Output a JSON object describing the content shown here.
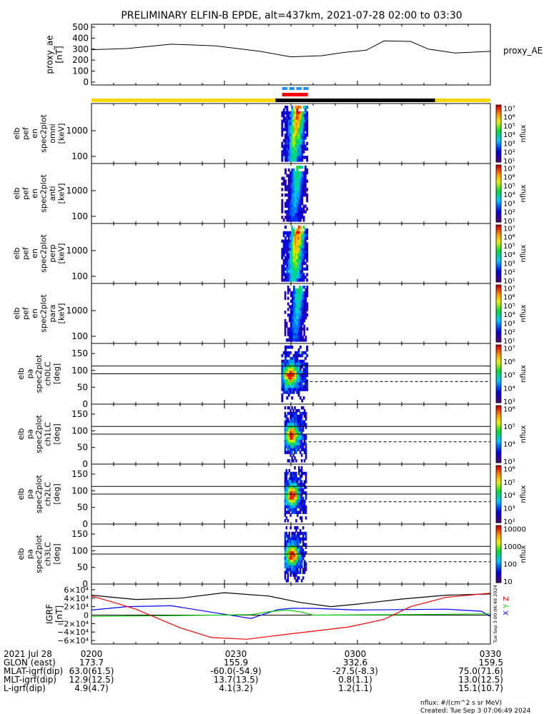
{
  "title": "PRELIMINARY ELFIN-B EPDE, alt=437km, 2021-07-28 02:00 to 03:30",
  "colors": {
    "bar_yellow": "#ffd700",
    "bar_black": "#000000",
    "flag_blue": "#1e90ff",
    "flag_red": "#ff0000",
    "bx": "#0000ff",
    "by": "#00cc00",
    "bz": "#ff0000",
    "btot": "#000000"
  },
  "chart_data": [
    {
      "type": "line",
      "panel": "proxy_ae",
      "ylabel": [
        "proxy_ae",
        "[nT]"
      ],
      "right_label": "proxy_AE",
      "ylim": [
        0,
        500
      ],
      "yticks": [
        0,
        100,
        200,
        300,
        400,
        500
      ],
      "x_minutes": [
        0,
        8,
        18,
        28,
        38,
        45,
        52,
        57,
        62,
        66,
        72,
        76,
        82,
        90
      ],
      "values": [
        295,
        305,
        345,
        330,
        280,
        230,
        240,
        270,
        290,
        375,
        370,
        300,
        265,
        280
      ]
    },
    {
      "type": "bar",
      "panel": "status",
      "segments": [
        {
          "start": 0,
          "end": 41.5,
          "color": "yellow"
        },
        {
          "start": 41.5,
          "end": 77.5,
          "color": "black"
        },
        {
          "start": 77.5,
          "end": 90,
          "color": "yellow"
        }
      ],
      "blue_flags": [
        [
          43,
          44.2
        ],
        [
          44.6,
          45.8
        ],
        [
          46.2,
          47.4
        ],
        [
          47.8,
          49
        ]
      ],
      "red_flag": [
        43,
        48.8
      ]
    },
    {
      "type": "heatmap",
      "panel": "omni",
      "ylabel": [
        "elb",
        "pef",
        "en",
        "spec2plot",
        "omni",
        "[keV]"
      ],
      "scale": "log",
      "yticks": [
        "100",
        "1000"
      ],
      "x_range_minutes": [
        42.8,
        48.8
      ],
      "colorbar": {
        "label": "nflux",
        "ticks": [
          "10¹",
          "10²",
          "10³",
          "10⁴",
          "10⁵",
          "10⁶",
          "10⁷"
        ]
      }
    },
    {
      "type": "heatmap",
      "panel": "anti",
      "ylabel": [
        "elb",
        "pef",
        "en",
        "spec2plot",
        "anti",
        "[keV]"
      ],
      "scale": "log",
      "yticks": [
        "100",
        "1000"
      ],
      "x_range_minutes": [
        42.8,
        48.8
      ],
      "colorbar": {
        "label": "nflux",
        "ticks": [
          "10¹",
          "10²",
          "10³",
          "10⁴",
          "10⁵",
          "10⁶",
          "10⁷"
        ]
      }
    },
    {
      "type": "heatmap",
      "panel": "perp",
      "ylabel": [
        "elb",
        "pef",
        "en",
        "spec2plot",
        "perp",
        "[keV]"
      ],
      "scale": "log",
      "yticks": [
        "100",
        "1000"
      ],
      "x_range_minutes": [
        42.8,
        48.8
      ],
      "colorbar": {
        "label": "nflux",
        "ticks": [
          "10¹",
          "10²",
          "10³",
          "10⁴",
          "10⁵",
          "10⁶",
          "10⁷"
        ]
      }
    },
    {
      "type": "heatmap",
      "panel": "para",
      "ylabel": [
        "elb",
        "pef",
        "en",
        "spec2plot",
        "para",
        "[keV]"
      ],
      "scale": "log",
      "yticks": [
        "100",
        "1000"
      ],
      "x_range_minutes": [
        43.5,
        48.8
      ],
      "colorbar": {
        "label": "nflux",
        "ticks": [
          "10¹",
          "10²",
          "10³",
          "10⁴",
          "10⁵",
          "10⁶",
          "10⁷"
        ]
      }
    },
    {
      "type": "heatmap",
      "panel": "ch0LC",
      "ylabel": [
        "elb",
        "pa",
        "spec2plot",
        "ch0LC",
        "[deg]"
      ],
      "ylim": [
        0,
        180
      ],
      "yticks": [
        0,
        50,
        100,
        150
      ],
      "loss_cone_solid": [
        90,
        113
      ],
      "loss_cone_dashed": 67,
      "x_range_minutes": [
        42.8,
        48.8
      ],
      "colorbar": {
        "label": "nflux",
        "ticks": [
          "10³",
          "10⁴",
          "10⁵",
          "10⁶",
          "10⁷"
        ]
      }
    },
    {
      "type": "heatmap",
      "panel": "ch1LC",
      "ylabel": [
        "elb",
        "pa",
        "spec2plot",
        "ch1LC",
        "[deg]"
      ],
      "ylim": [
        0,
        180
      ],
      "yticks": [
        0,
        50,
        100,
        150
      ],
      "loss_cone_solid": [
        90,
        113
      ],
      "loss_cone_dashed": 67,
      "x_range_minutes": [
        43.5,
        48.5
      ],
      "colorbar": {
        "label": "nflux",
        "ticks": [
          "10³",
          "10⁴",
          "10⁵",
          "10⁶"
        ]
      }
    },
    {
      "type": "heatmap",
      "panel": "ch2LC",
      "ylabel": [
        "elb",
        "pa",
        "spec2plot",
        "ch2LC",
        "[deg]"
      ],
      "ylim": [
        0,
        180
      ],
      "yticks": [
        0,
        50,
        100,
        150
      ],
      "loss_cone_solid": [
        90,
        113
      ],
      "loss_cone_dashed": 67,
      "x_range_minutes": [
        43.5,
        48.5
      ],
      "colorbar": {
        "label": "nflux",
        "ticks": [
          "10²",
          "10³",
          "10⁴",
          "10⁵",
          "10⁶"
        ]
      }
    },
    {
      "type": "heatmap",
      "panel": "ch3LC",
      "ylabel": [
        "elb",
        "pa",
        "spec2plot",
        "ch3LC",
        "[deg]"
      ],
      "ylim": [
        0,
        180
      ],
      "yticks": [
        0,
        50,
        100,
        150
      ],
      "loss_cone_solid": [
        90,
        113
      ],
      "loss_cone_dashed": 67,
      "x_range_minutes": [
        43.5,
        48.5
      ],
      "colorbar": {
        "label": "nflux",
        "ticks": [
          "10",
          "100",
          "1000",
          "10000"
        ]
      }
    },
    {
      "type": "line",
      "panel": "igrf",
      "ylabel": [
        "IGRF",
        "[nT]"
      ],
      "ylim": [
        -65000,
        70000
      ],
      "yticks": [
        {
          "value": 60000,
          "label": "6×10⁴"
        },
        {
          "value": 40000,
          "label": "4×10⁴"
        },
        {
          "value": 20000,
          "label": "2×10⁴"
        },
        {
          "value": 0,
          "label": "0"
        },
        {
          "value": -20000,
          "label": "−2×10⁴"
        },
        {
          "value": -40000,
          "label": "−4×10⁴"
        },
        {
          "value": -60000,
          "label": "−6×10⁴"
        }
      ],
      "legend": [
        "X",
        "Y",
        "Z"
      ],
      "series": [
        {
          "name": "",
          "color": "btot",
          "x": [
            0,
            10,
            20,
            30,
            40,
            47,
            54,
            60,
            70,
            80,
            90
          ],
          "values": [
            47000,
            37000,
            40000,
            53000,
            45000,
            30000,
            20000,
            26000,
            38000,
            47000,
            50000
          ]
        },
        {
          "name": "X",
          "color": "bx",
          "x": [
            0,
            8,
            18,
            30,
            36,
            40,
            42,
            45,
            50,
            60,
            70,
            80,
            88,
            90
          ],
          "values": [
            12000,
            20000,
            22000,
            2000,
            -8000,
            6000,
            13000,
            16000,
            16000,
            12000,
            13000,
            14000,
            9000,
            -3000
          ]
        },
        {
          "name": "Y",
          "color": "by",
          "x": [
            0,
            20,
            36,
            40,
            44,
            47,
            50,
            70,
            90
          ],
          "values": [
            -3000,
            -1000,
            1000,
            8000,
            12000,
            8000,
            0,
            1000,
            3000
          ]
        },
        {
          "name": "Z",
          "color": "bz",
          "x": [
            0,
            5,
            10,
            20,
            27,
            35,
            42,
            50,
            58,
            66,
            72,
            80,
            90
          ],
          "values": [
            45000,
            30000,
            14000,
            -30000,
            -53000,
            -57000,
            -48000,
            -38000,
            -28000,
            -10000,
            20000,
            42000,
            52000
          ]
        }
      ]
    }
  ],
  "axis_info": {
    "rows": [
      {
        "label": "2021 Jul 28",
        "values": [
          "0200",
          "0230",
          "0300",
          "0330"
        ]
      },
      {
        "label": "GLON (east)",
        "values": [
          "173.7",
          "155.9",
          "332.6",
          "159.5"
        ]
      },
      {
        "label": "MLAT-igrf(dip)",
        "values": [
          "63.0(61.5)",
          "-60.0(-54.9)",
          "-27.5(-8.3)",
          "75.0(71.6)"
        ]
      },
      {
        "label": "MLT-igrf(dip)",
        "values": [
          "12.9(12.5)",
          "13.7(13.5)",
          "0.8(1.1)",
          "13.0(12.5)"
        ]
      },
      {
        "label": "L-igrf(dip)",
        "values": [
          "4.9(4.7)",
          "4.1(3.2)",
          "1.2(1.1)",
          "15.1(10.7)"
        ]
      }
    ]
  },
  "footer": {
    "units": "nflux: #/(cm^2 s sr MeV)",
    "created": "Created: Tue Sep  3 07:06:49 2024"
  },
  "side_stamp": "Tue Sep  3 00:06:48 2024"
}
